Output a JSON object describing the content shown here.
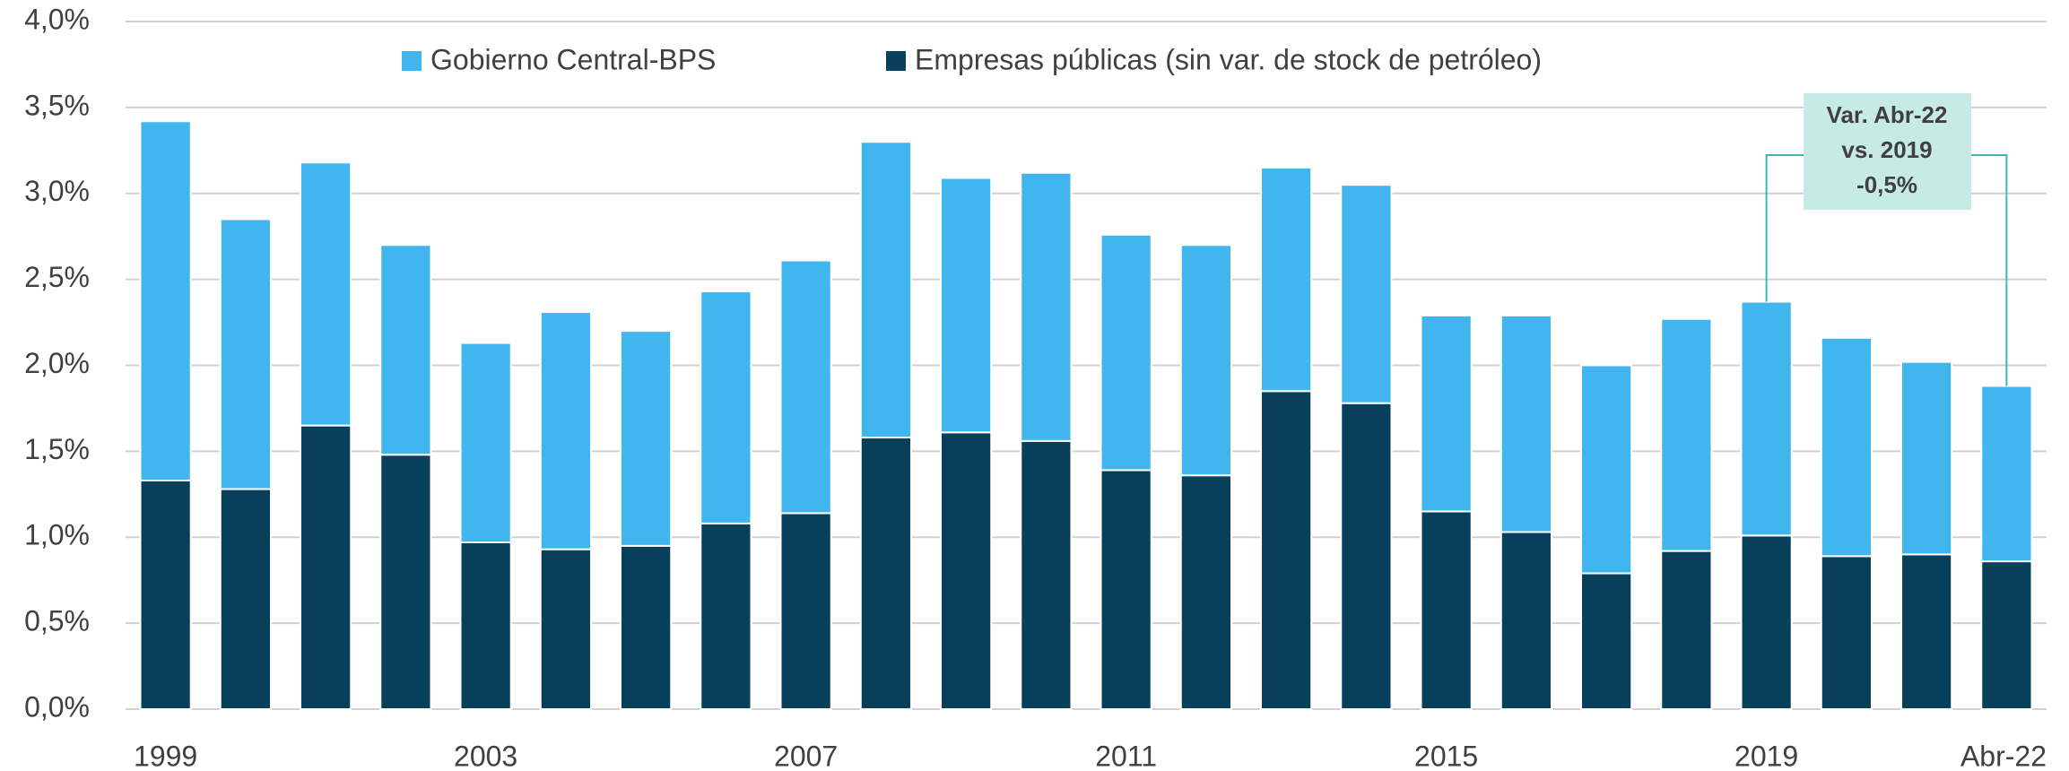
{
  "chart_data": {
    "type": "stacked_bar",
    "categories": [
      "1999",
      null,
      null,
      null,
      "2003",
      null,
      null,
      null,
      "2007",
      null,
      null,
      null,
      "2011",
      null,
      null,
      null,
      "2015",
      null,
      null,
      null,
      "2019",
      null,
      null,
      "Abr-22"
    ],
    "series": [
      {
        "name": "Empresas públicas (sin var. de stock de petróleo)",
        "color": "#083f5a",
        "values": [
          1.33,
          1.28,
          1.65,
          1.48,
          0.97,
          0.93,
          0.95,
          1.08,
          1.14,
          1.58,
          1.61,
          1.56,
          1.39,
          1.36,
          1.85,
          1.78,
          1.15,
          1.03,
          0.79,
          0.92,
          1.01,
          0.89,
          0.9,
          0.86
        ]
      },
      {
        "name": "Gobierno Central-BPS",
        "color": "#41b6ee",
        "values": [
          2.09,
          1.57,
          1.53,
          1.22,
          1.16,
          1.38,
          1.25,
          1.35,
          1.47,
          1.72,
          1.48,
          1.56,
          1.37,
          1.34,
          1.3,
          1.27,
          1.14,
          1.26,
          1.21,
          1.35,
          1.36,
          1.27,
          1.12,
          1.02
        ]
      }
    ],
    "legend_order": [
      1,
      0
    ],
    "ylim": [
      0,
      4
    ],
    "yticks": [
      {
        "value": 0,
        "label": "0,0%"
      },
      {
        "value": 0.5,
        "label": "0,5%"
      },
      {
        "value": 1,
        "label": "1,0%"
      },
      {
        "value": 1.5,
        "label": "1,5%"
      },
      {
        "value": 2,
        "label": "2,0%"
      },
      {
        "value": 2.5,
        "label": "2,5%"
      },
      {
        "value": 3,
        "label": "3,0%"
      },
      {
        "value": 3.5,
        "label": "3,5%"
      },
      {
        "value": 4,
        "label": "4,0%"
      }
    ],
    "grid": true,
    "annotation": [
      "Var. Abr-22",
      "vs. 2019",
      "-0,5%"
    ]
  }
}
